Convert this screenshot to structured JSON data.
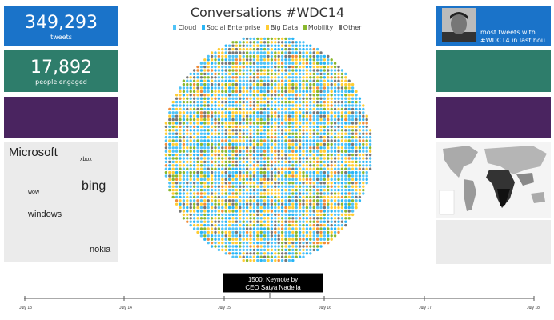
{
  "stats": [
    {
      "value": "349,293",
      "label": "tweets",
      "color": "#1a73c9"
    },
    {
      "value": "17,892",
      "label": "people engaged",
      "color": "#2e7d6b"
    }
  ],
  "purple_color": "#4a2460",
  "word_cloud": [
    "Microsoft",
    "xbox",
    "bing",
    "wow",
    "windows",
    "nokia"
  ],
  "title": "Conversations #WDC14",
  "legend": [
    {
      "label": "Cloud",
      "color": "#4fc3f7"
    },
    {
      "label": "Social Enterprise",
      "color": "#29b6f6"
    },
    {
      "label": "Big Data",
      "color": "#ffcc33"
    },
    {
      "label": "Mobility",
      "color": "#8ab82e"
    },
    {
      "label": "Other",
      "color": "#777777"
    }
  ],
  "top_tweeter": {
    "caption": "most tweets with #WDC14 in last hou"
  },
  "timeline": {
    "ticks": [
      "July 13",
      "July 14",
      "July 15",
      "July 16",
      "July 17",
      "July 18"
    ],
    "event_line1": "1500: Keynote by",
    "event_line2": "CEO Satya Nadella"
  }
}
